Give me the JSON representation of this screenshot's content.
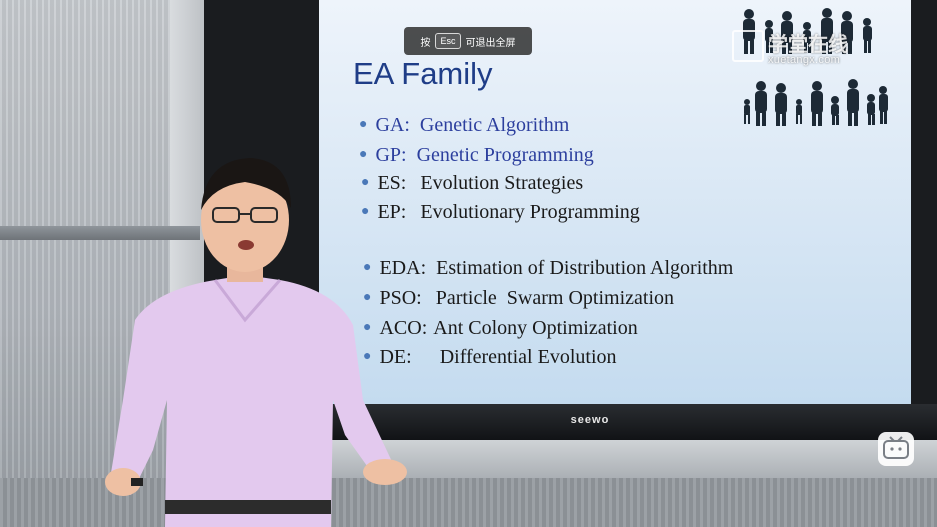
{
  "overlay": {
    "hint_prefix": "按",
    "hint_key": "Esc",
    "hint_suffix": "可退出全屏",
    "watermark_title": "学堂在线",
    "watermark_url": "xuetangx.com"
  },
  "display": {
    "brand": "seewo"
  },
  "slide": {
    "title": "EA Family",
    "items": [
      {
        "abbr": "GA:",
        "name": "Genetic Algorithm"
      },
      {
        "abbr": "GP:",
        "name": "Genetic Programming"
      },
      {
        "abbr": "ES:",
        "name": "Evolution Strategies"
      },
      {
        "abbr": "EP:",
        "name": "Evolutionary Programming"
      },
      {
        "abbr": "EDA:",
        "name": "Estimation of Distribution Algorithm"
      },
      {
        "abbr": "PSO:",
        "name": "Particle  Swarm Optimization"
      },
      {
        "abbr": "ACO:",
        "name": "Ant Colony Optimization"
      },
      {
        "abbr": "DE:",
        "name": "Differential Evolution"
      }
    ]
  },
  "icons": {
    "player": "tv-icon",
    "watermark": "xuetangx-logo-icon"
  },
  "colors": {
    "slide_title": "#1f3d87",
    "highlight_items": "#2c3f9e",
    "bullet": "#4a78b8"
  }
}
